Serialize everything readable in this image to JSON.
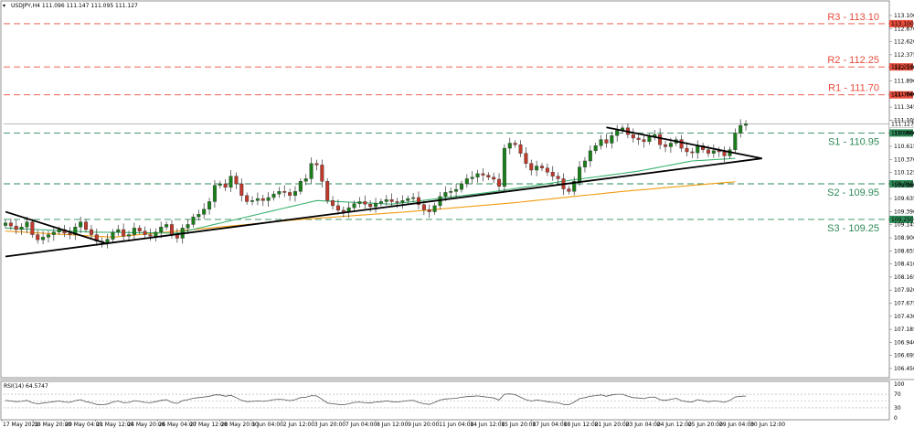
{
  "header": {
    "symbol_line": "USDJPY,H4  111.096 111.147 111.095 111.127"
  },
  "rsi": {
    "label": "RSI(14) 64.5747",
    "levels": [
      70,
      50,
      30
    ],
    "ticks": [
      "100",
      "70",
      "30",
      "0"
    ]
  },
  "colors": {
    "bull": "#1a7f1a",
    "bear": "#c0392b",
    "resistance": "#e74c3c",
    "support": "#2e8b57",
    "ma_fast": "#3cb371",
    "ma_slow": "#f39c12",
    "trend": "#000000",
    "price_line": "#b0b0b0"
  },
  "chart_data": {
    "type": "candlestick",
    "symbol": "USDJPY",
    "timeframe": "H4",
    "ylim": [
      106.19,
      113.35
    ],
    "y_ticks": [
      "113.100",
      "112.870",
      "112.620",
      "112.375",
      "112.130",
      "111.890",
      "111.640",
      "111.345",
      "111.105",
      "110.860",
      "110.615",
      "110.370",
      "110.125",
      "109.880",
      "109.635",
      "109.390",
      "109.145",
      "108.900",
      "108.655",
      "108.410",
      "108.165",
      "107.920",
      "107.675",
      "107.430",
      "107.185",
      "106.940",
      "106.695",
      "106.450"
    ],
    "x_labels": [
      "17 May 2021",
      "18 May 20:00",
      "20 May 04:00",
      "21 May 12:00",
      "24 May 20:00",
      "26 May 04:00",
      "27 May 12:00",
      "28 May 20:00",
      "1 Jun 04:00",
      "2 Jun 12:00",
      "3 Jun 20:00",
      "7 Jun 04:00",
      "8 Jun 12:00",
      "9 Jun 20:00",
      "11 Jun 04:00",
      "14 Jun 12:00",
      "15 Jun 20:00",
      "17 Jun 04:00",
      "18 Jun 12:00",
      "21 Jun 20:00",
      "23 Jun 04:00",
      "24 Jun 12:00",
      "25 Jun 20:00",
      "29 Jun 04:00",
      "30 Jun 12:00"
    ],
    "levels": [
      {
        "name": "R3",
        "value": 113.1,
        "label": "R3 - 113.10",
        "kind": "resistance",
        "tag": "113.100"
      },
      {
        "name": "R2",
        "value": 112.25,
        "label": "R2 - 112.25",
        "kind": "resistance",
        "tag": "112.250"
      },
      {
        "name": "R1",
        "value": 111.7,
        "label": "R1 - 111.70",
        "kind": "resistance",
        "tag": "111.700"
      },
      {
        "name": "S1",
        "value": 110.95,
        "label": "S1 - 110.95",
        "kind": "support",
        "tag": "110.950"
      },
      {
        "name": "S2",
        "value": 109.95,
        "label": "S2 - 109.95",
        "kind": "support",
        "tag": "109.950"
      },
      {
        "name": "S3",
        "value": 109.25,
        "label": "S3 - 109.25",
        "kind": "support",
        "tag": "109.250"
      }
    ],
    "current_price": {
      "value": 111.127,
      "tag": "111.127"
    },
    "close": [
      109.18,
      109.12,
      109.05,
      109.1,
      109.2,
      108.95,
      108.85,
      108.9,
      108.95,
      109.0,
      109.05,
      108.98,
      108.95,
      109.1,
      109.2,
      109.05,
      108.95,
      108.82,
      108.8,
      108.86,
      109.0,
      109.05,
      108.92,
      108.95,
      109.08,
      109.02,
      108.95,
      108.92,
      109.0,
      109.1,
      109.15,
      108.95,
      108.88,
      109.08,
      109.15,
      109.3,
      109.35,
      109.45,
      109.6,
      109.92,
      109.95,
      109.88,
      110.1,
      109.95,
      109.72,
      109.6,
      109.62,
      109.66,
      109.62,
      109.68,
      109.75,
      109.8,
      109.78,
      109.72,
      109.8,
      110.0,
      110.05,
      110.35,
      110.32,
      110.0,
      109.62,
      109.52,
      109.43,
      109.4,
      109.48,
      109.56,
      109.6,
      109.55,
      109.5,
      109.57,
      109.6,
      109.64,
      109.6,
      109.58,
      109.62,
      109.66,
      109.68,
      109.54,
      109.44,
      109.4,
      109.52,
      109.7,
      109.78,
      109.8,
      109.84,
      109.95,
      110.05,
      110.08,
      110.15,
      110.12,
      110.08,
      110.04,
      109.9,
      110.65,
      110.75,
      110.72,
      110.55,
      110.35,
      110.22,
      110.3,
      110.26,
      110.18,
      110.1,
      110.05,
      109.85,
      109.8,
      110.0,
      110.28,
      110.4,
      110.6,
      110.7,
      110.82,
      110.75,
      110.9,
      111.0,
      111.05,
      110.92,
      110.85,
      110.82,
      110.78,
      110.88,
      110.92,
      110.72,
      110.68,
      110.75,
      110.82,
      110.65,
      110.58,
      110.56,
      110.7,
      110.62,
      110.55,
      110.6,
      110.58,
      110.5,
      110.62,
      110.95,
      111.1,
      111.13
    ],
    "ma_fast_samples": [
      [
        0,
        109.08
      ],
      [
        16,
        109.0
      ],
      [
        32,
        108.98
      ],
      [
        45,
        109.3
      ],
      [
        58,
        109.62
      ],
      [
        72,
        109.55
      ],
      [
        90,
        109.78
      ],
      [
        104,
        110.0
      ],
      [
        118,
        110.2
      ],
      [
        128,
        110.4
      ],
      [
        136,
        110.45
      ]
    ],
    "ma_slow_samples": [
      [
        0,
        109.02
      ],
      [
        20,
        108.9
      ],
      [
        35,
        109.05
      ],
      [
        55,
        109.25
      ],
      [
        75,
        109.4
      ],
      [
        95,
        109.58
      ],
      [
        115,
        109.8
      ],
      [
        128,
        109.92
      ],
      [
        136,
        109.99
      ]
    ],
    "trendlines": [
      {
        "name": "main-uptrend",
        "from": [
          0,
          108.52
        ],
        "to": [
          141,
          110.45
        ]
      },
      {
        "name": "early-downtrend",
        "from": [
          0,
          109.4
        ],
        "to": [
          19,
          108.77
        ]
      },
      {
        "name": "late-downtrend",
        "from": [
          112,
          111.06
        ],
        "to": [
          141,
          110.45
        ]
      }
    ],
    "rsi_values": [
      52,
      50,
      48,
      49,
      52,
      45,
      42,
      44,
      46,
      48,
      50,
      47,
      46,
      51,
      54,
      48,
      45,
      40,
      39,
      41,
      47,
      50,
      45,
      46,
      51,
      49,
      46,
      45,
      48,
      52,
      54,
      46,
      43,
      51,
      54,
      58,
      60,
      62,
      64,
      68,
      68,
      64,
      67,
      60,
      52,
      48,
      49,
      50,
      49,
      51,
      54,
      55,
      54,
      51,
      54,
      60,
      61,
      66,
      65,
      55,
      44,
      42,
      40,
      39,
      42,
      46,
      47,
      45,
      44,
      47,
      48,
      50,
      48,
      47,
      49,
      51,
      52,
      46,
      42,
      40,
      46,
      53,
      56,
      57,
      58,
      61,
      63,
      64,
      65,
      63,
      61,
      59,
      53,
      70,
      71,
      69,
      61,
      54,
      50,
      53,
      51,
      48,
      46,
      45,
      40,
      39,
      47,
      57,
      60,
      64,
      66,
      68,
      64,
      68,
      70,
      70,
      64,
      60,
      59,
      57,
      61,
      62,
      54,
      52,
      55,
      58,
      51,
      48,
      47,
      54,
      51,
      48,
      50,
      49,
      46,
      52,
      62,
      64,
      64.57
    ]
  }
}
